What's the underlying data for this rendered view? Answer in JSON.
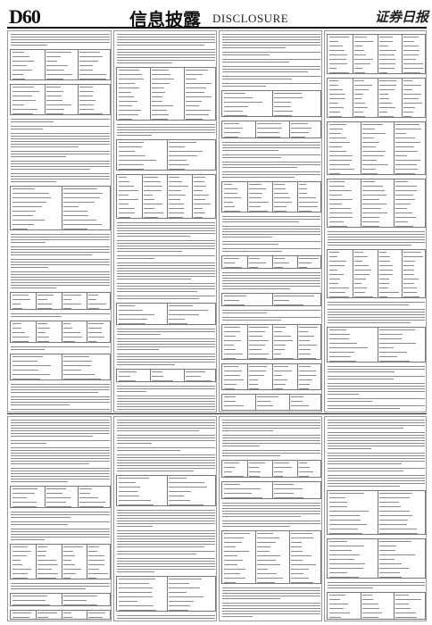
{
  "header": {
    "page_number": "D60",
    "section_title": "信息披露",
    "section_title_en": "DISCLOSURE",
    "masthead": "证券日报"
  }
}
